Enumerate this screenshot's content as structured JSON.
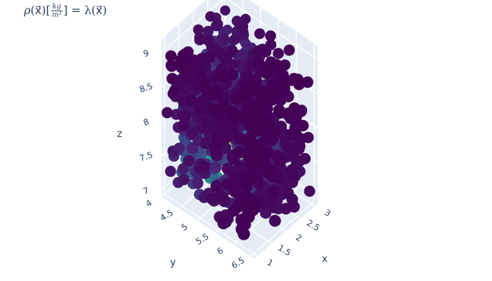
{
  "chart_data": {
    "type": "scatter3d",
    "title": {
      "rho": "ρ",
      "arg": "(x⃗)[",
      "frac_num": "kg",
      "frac_den": "m³",
      "rhs": "] = λ(x⃗)"
    },
    "xlabel": "x",
    "ylabel": "y",
    "zlabel": "z",
    "xticks": [
      "1",
      "1.5",
      "2",
      "2.5",
      "3"
    ],
    "yticks": [
      "4",
      "4.5",
      "5",
      "5.5",
      "6",
      "6.5"
    ],
    "zticks": [
      "7",
      "7.5",
      "8",
      "8.5",
      "9"
    ],
    "xlim": [
      0.9,
      3.1
    ],
    "ylim": [
      4.0,
      6.6
    ],
    "zlim": [
      6.9,
      9.2
    ],
    "colorscale": "Viridis",
    "colors": {
      "scene_bg": "#e5ecf6",
      "grid": "#ffffff",
      "text": "#2a3f5f"
    },
    "marker_size": 8,
    "point_count": 900,
    "color_encoding": "density λ(x⃗), high near center of lower region (yellow), low at top (purple)"
  }
}
